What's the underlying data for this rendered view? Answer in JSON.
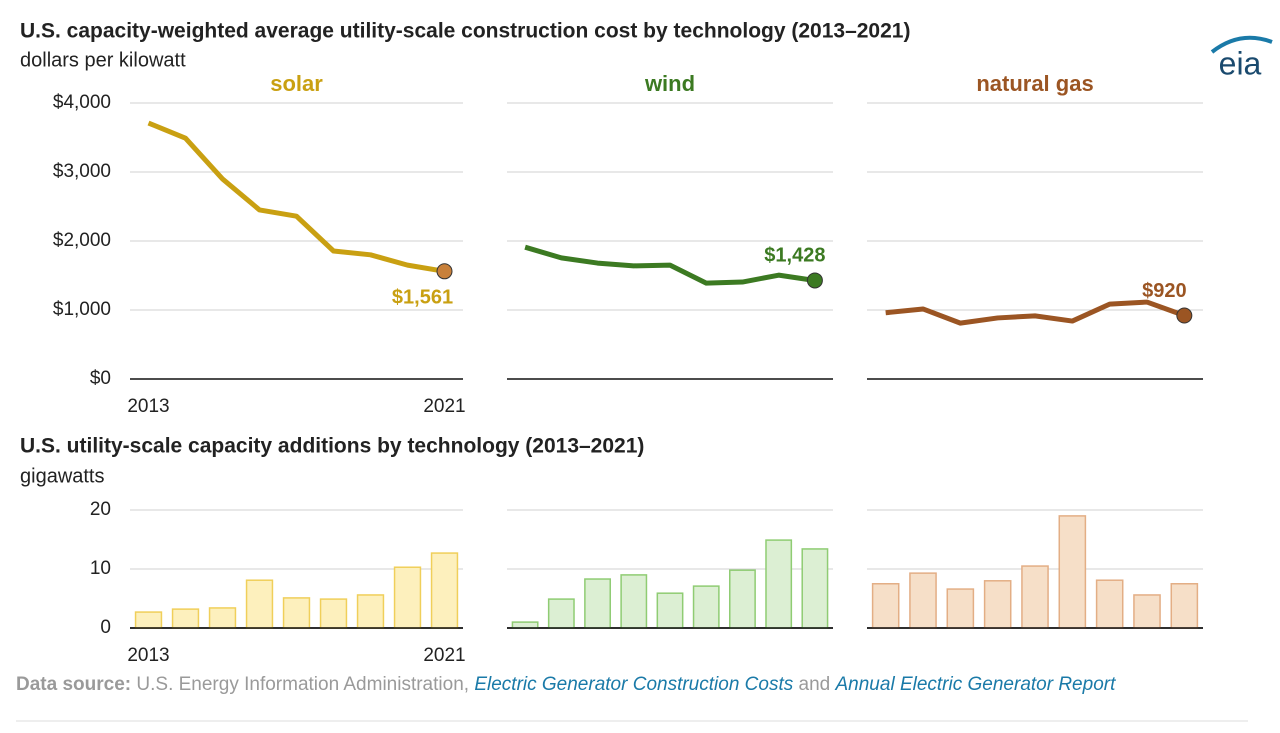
{
  "chart_data": [
    {
      "type": "line",
      "title": "U.S. capacity-weighted average utility-scale construction cost by technology (2013–2021)",
      "subtitle": "dollars per kilowatt",
      "x": [
        2013,
        2014,
        2015,
        2016,
        2017,
        2018,
        2019,
        2020,
        2021
      ],
      "xlim": [
        2012.5,
        2021.5
      ],
      "xticks": [
        2013,
        2021
      ],
      "ylim": [
        0,
        4000
      ],
      "yticks": [
        {
          "value": 0,
          "label": "$0"
        },
        {
          "value": 1000,
          "label": "$1,000"
        },
        {
          "value": 2000,
          "label": "$2,000"
        },
        {
          "value": 3000,
          "label": "$3,000"
        },
        {
          "value": 4000,
          "label": "$4,000"
        }
      ],
      "grid": true,
      "series": [
        {
          "name": "solar",
          "color": "#c9a012",
          "marker_color": "#c8803a",
          "label_color": "#c9a012",
          "values": [
            3710,
            3490,
            2900,
            2450,
            2360,
            1855,
            1800,
            1650,
            1561
          ],
          "value_labels": [
            null,
            null,
            null,
            null,
            null,
            null,
            null,
            null,
            "$1,561"
          ]
        },
        {
          "name": "wind",
          "color": "#3c7a22",
          "marker_color": "#3c7a22",
          "label_color": "#3c7a22",
          "values": [
            1910,
            1755,
            1680,
            1640,
            1650,
            1390,
            1405,
            1505,
            1428
          ],
          "value_labels": [
            null,
            null,
            null,
            null,
            null,
            null,
            null,
            null,
            "$1,428"
          ]
        },
        {
          "name": "natural gas",
          "color": "#9b5523",
          "marker_color": "#9b5523",
          "label_color": "#9b5523",
          "values": [
            960,
            1015,
            810,
            885,
            915,
            840,
            1085,
            1115,
            920
          ],
          "value_labels": [
            null,
            null,
            null,
            null,
            null,
            null,
            null,
            null,
            "$920"
          ]
        }
      ]
    },
    {
      "type": "bar",
      "title": "U.S. utility-scale capacity additions by technology (2013–2021)",
      "subtitle": "gigawatts",
      "x": [
        2013,
        2014,
        2015,
        2016,
        2017,
        2018,
        2019,
        2020,
        2021
      ],
      "xlim": [
        2012.5,
        2021.5
      ],
      "xticks": [
        2013,
        2021
      ],
      "ylim": [
        0,
        20
      ],
      "yticks": [
        0,
        10,
        20
      ],
      "grid": true,
      "series": [
        {
          "name": "solar",
          "color": "#fdf0bd",
          "stroke": "#f0cf5a",
          "values": [
            2.7,
            3.2,
            3.4,
            8.1,
            5.1,
            4.9,
            5.6,
            10.3,
            12.7
          ]
        },
        {
          "name": "wind",
          "color": "#dcefd3",
          "stroke": "#8fcc73",
          "values": [
            1.0,
            4.9,
            8.3,
            9.0,
            5.9,
            7.1,
            9.8,
            14.9,
            13.4
          ]
        },
        {
          "name": "natural gas",
          "color": "#f6dfc8",
          "stroke": "#e3ae85",
          "values": [
            7.5,
            9.3,
            6.6,
            8.0,
            10.5,
            19.0,
            8.1,
            5.6,
            7.5
          ]
        }
      ]
    }
  ],
  "logo": "eia",
  "source": {
    "label": "Data source:",
    "text": "U.S. Energy Information Administration,",
    "link1": "Electric Generator Construction Costs",
    "and": "and",
    "link2": "Annual Electric Generator Report"
  }
}
